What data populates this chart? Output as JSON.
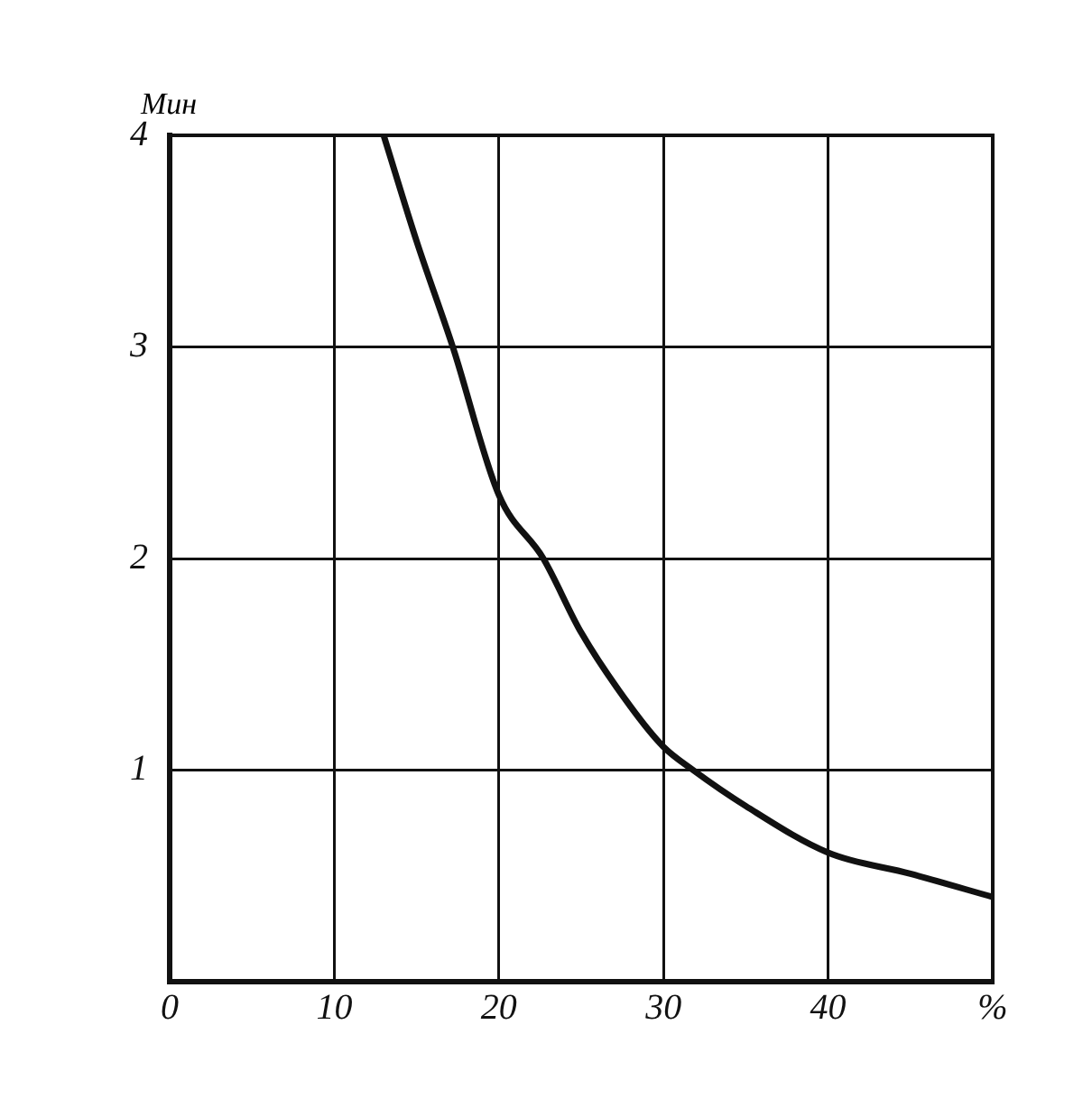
{
  "chart_data": {
    "type": "line",
    "ylabel": "Мин",
    "x": [
      13,
      15,
      17.2,
      20,
      22.7,
      25,
      28,
      30,
      31.8,
      35,
      40,
      45,
      50
    ],
    "series": [
      {
        "color": "#111111",
        "values": [
          4,
          3.5,
          3,
          2.3,
          2,
          1.65,
          1.3,
          1.11,
          1,
          0.83,
          0.61,
          0.51,
          0.4
        ]
      }
    ],
    "xlim": [
      0,
      50
    ],
    "xticks": [
      0,
      10,
      20,
      30,
      40,
      {
        "value": 50,
        "label": "%"
      }
    ],
    "ylim": [
      0,
      4
    ],
    "yticks": [
      {
        "value": 0,
        "label": null
      },
      1,
      2,
      3,
      4
    ],
    "grid": true,
    "legend": false,
    "marker": "none",
    "line_style": "solid"
  }
}
